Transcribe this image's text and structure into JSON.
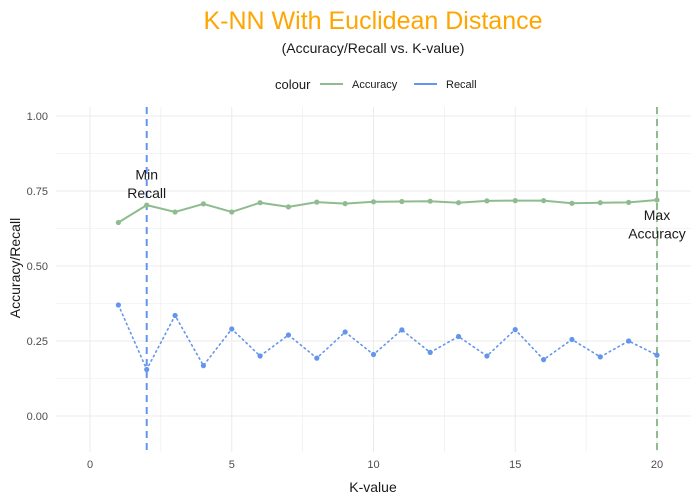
{
  "chart_data": {
    "type": "line",
    "title": "K-NN With Euclidean Distance",
    "subtitle": "(Accuracy/Recall vs. K-value)",
    "xlabel": "K-value",
    "ylabel": "Accuracy/Recall",
    "xlim": [
      -1.2,
      21.2
    ],
    "ylim": [
      -0.12,
      1.03
    ],
    "x_ticks": [
      0,
      5,
      10,
      15,
      20
    ],
    "x_tick_labels": [
      "0",
      "5",
      "10",
      "15",
      "20"
    ],
    "y_ticks": [
      0,
      0.25,
      0.5,
      0.75,
      1
    ],
    "y_tick_labels": [
      "0.00",
      "0.25",
      "0.50",
      "0.75",
      "1.00"
    ],
    "grid": true,
    "legend": {
      "title": "colour",
      "position": "top",
      "entries": [
        {
          "label": "Accuracy",
          "color": "#8fbc8f"
        },
        {
          "label": "Recall",
          "color": "#6495ed"
        }
      ]
    },
    "x": [
      1,
      2,
      3,
      4,
      5,
      6,
      7,
      8,
      9,
      10,
      11,
      12,
      13,
      14,
      15,
      16,
      17,
      18,
      19,
      20
    ],
    "series": [
      {
        "name": "Accuracy",
        "color": "#8fbc8f",
        "line_style": "solid",
        "values": [
          0.645,
          0.703,
          0.68,
          0.707,
          0.68,
          0.711,
          0.697,
          0.713,
          0.708,
          0.714,
          0.715,
          0.716,
          0.711,
          0.717,
          0.718,
          0.718,
          0.709,
          0.711,
          0.712,
          0.72
        ]
      },
      {
        "name": "Recall",
        "color": "#6495ed",
        "line_style": "dotted",
        "values": [
          0.37,
          0.155,
          0.335,
          0.168,
          0.29,
          0.2,
          0.27,
          0.193,
          0.28,
          0.205,
          0.287,
          0.212,
          0.265,
          0.2,
          0.288,
          0.188,
          0.255,
          0.197,
          0.25,
          0.203
        ]
      }
    ],
    "vlines": [
      {
        "x": 2,
        "color": "#6495ed",
        "style": "dashed"
      },
      {
        "x": 20,
        "color": "#8fbc8f",
        "style": "dashed"
      }
    ],
    "annotations": [
      {
        "text_lines": [
          "Min",
          "Recall"
        ],
        "x": 2,
        "y": 0.755
      },
      {
        "text_lines": [
          "Max",
          "Accuracy"
        ],
        "x": 20,
        "y": 0.62
      }
    ],
    "title_color": "#ffa500"
  }
}
